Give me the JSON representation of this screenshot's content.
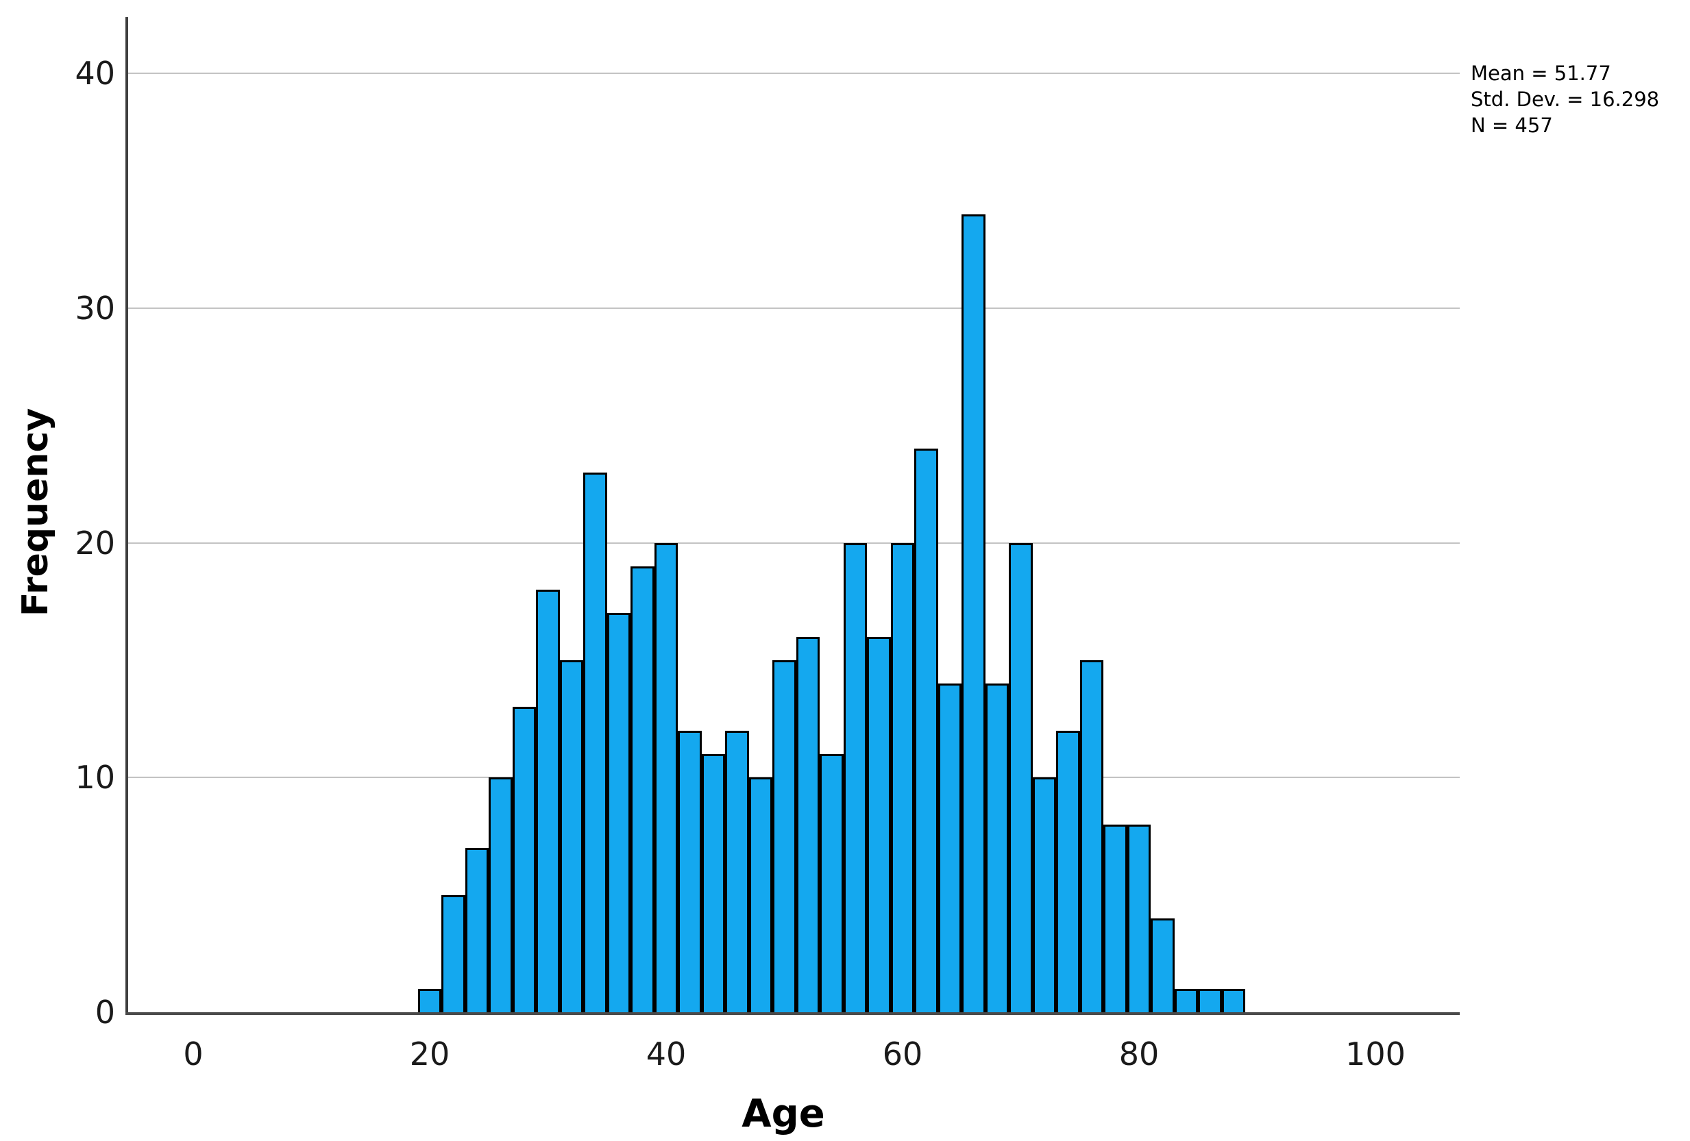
{
  "chart_data": {
    "type": "bar",
    "subtype": "histogram",
    "title": "",
    "xlabel": "Age",
    "ylabel": "Frequency",
    "bin_start": 19,
    "bin_width": 2,
    "values": [
      1,
      5,
      7,
      10,
      13,
      18,
      15,
      23,
      17,
      19,
      20,
      12,
      11,
      12,
      10,
      15,
      16,
      11,
      20,
      16,
      20,
      24,
      14,
      34,
      14,
      20,
      10,
      12,
      15,
      8,
      8,
      4,
      1,
      1,
      1
    ],
    "xticks": [
      0,
      20,
      40,
      60,
      80,
      100
    ],
    "yticks": [
      0,
      10,
      20,
      30,
      40
    ],
    "xlim": [
      -5.5,
      107.1
    ],
    "ylim": [
      0,
      42.4
    ],
    "grid": "horizontal",
    "legend_position": "none",
    "bar_color": "#14a8ef",
    "bar_border_color": "#000000",
    "gridline_color": "#c3c3c3",
    "axis_color": "#4a4a4a",
    "annotation": {
      "lines": [
        "Mean = 51.77",
        "Std. Dev. = 16.298",
        "N = 457"
      ],
      "mean": "51.77",
      "std_dev": "16.298",
      "n": "457"
    }
  }
}
